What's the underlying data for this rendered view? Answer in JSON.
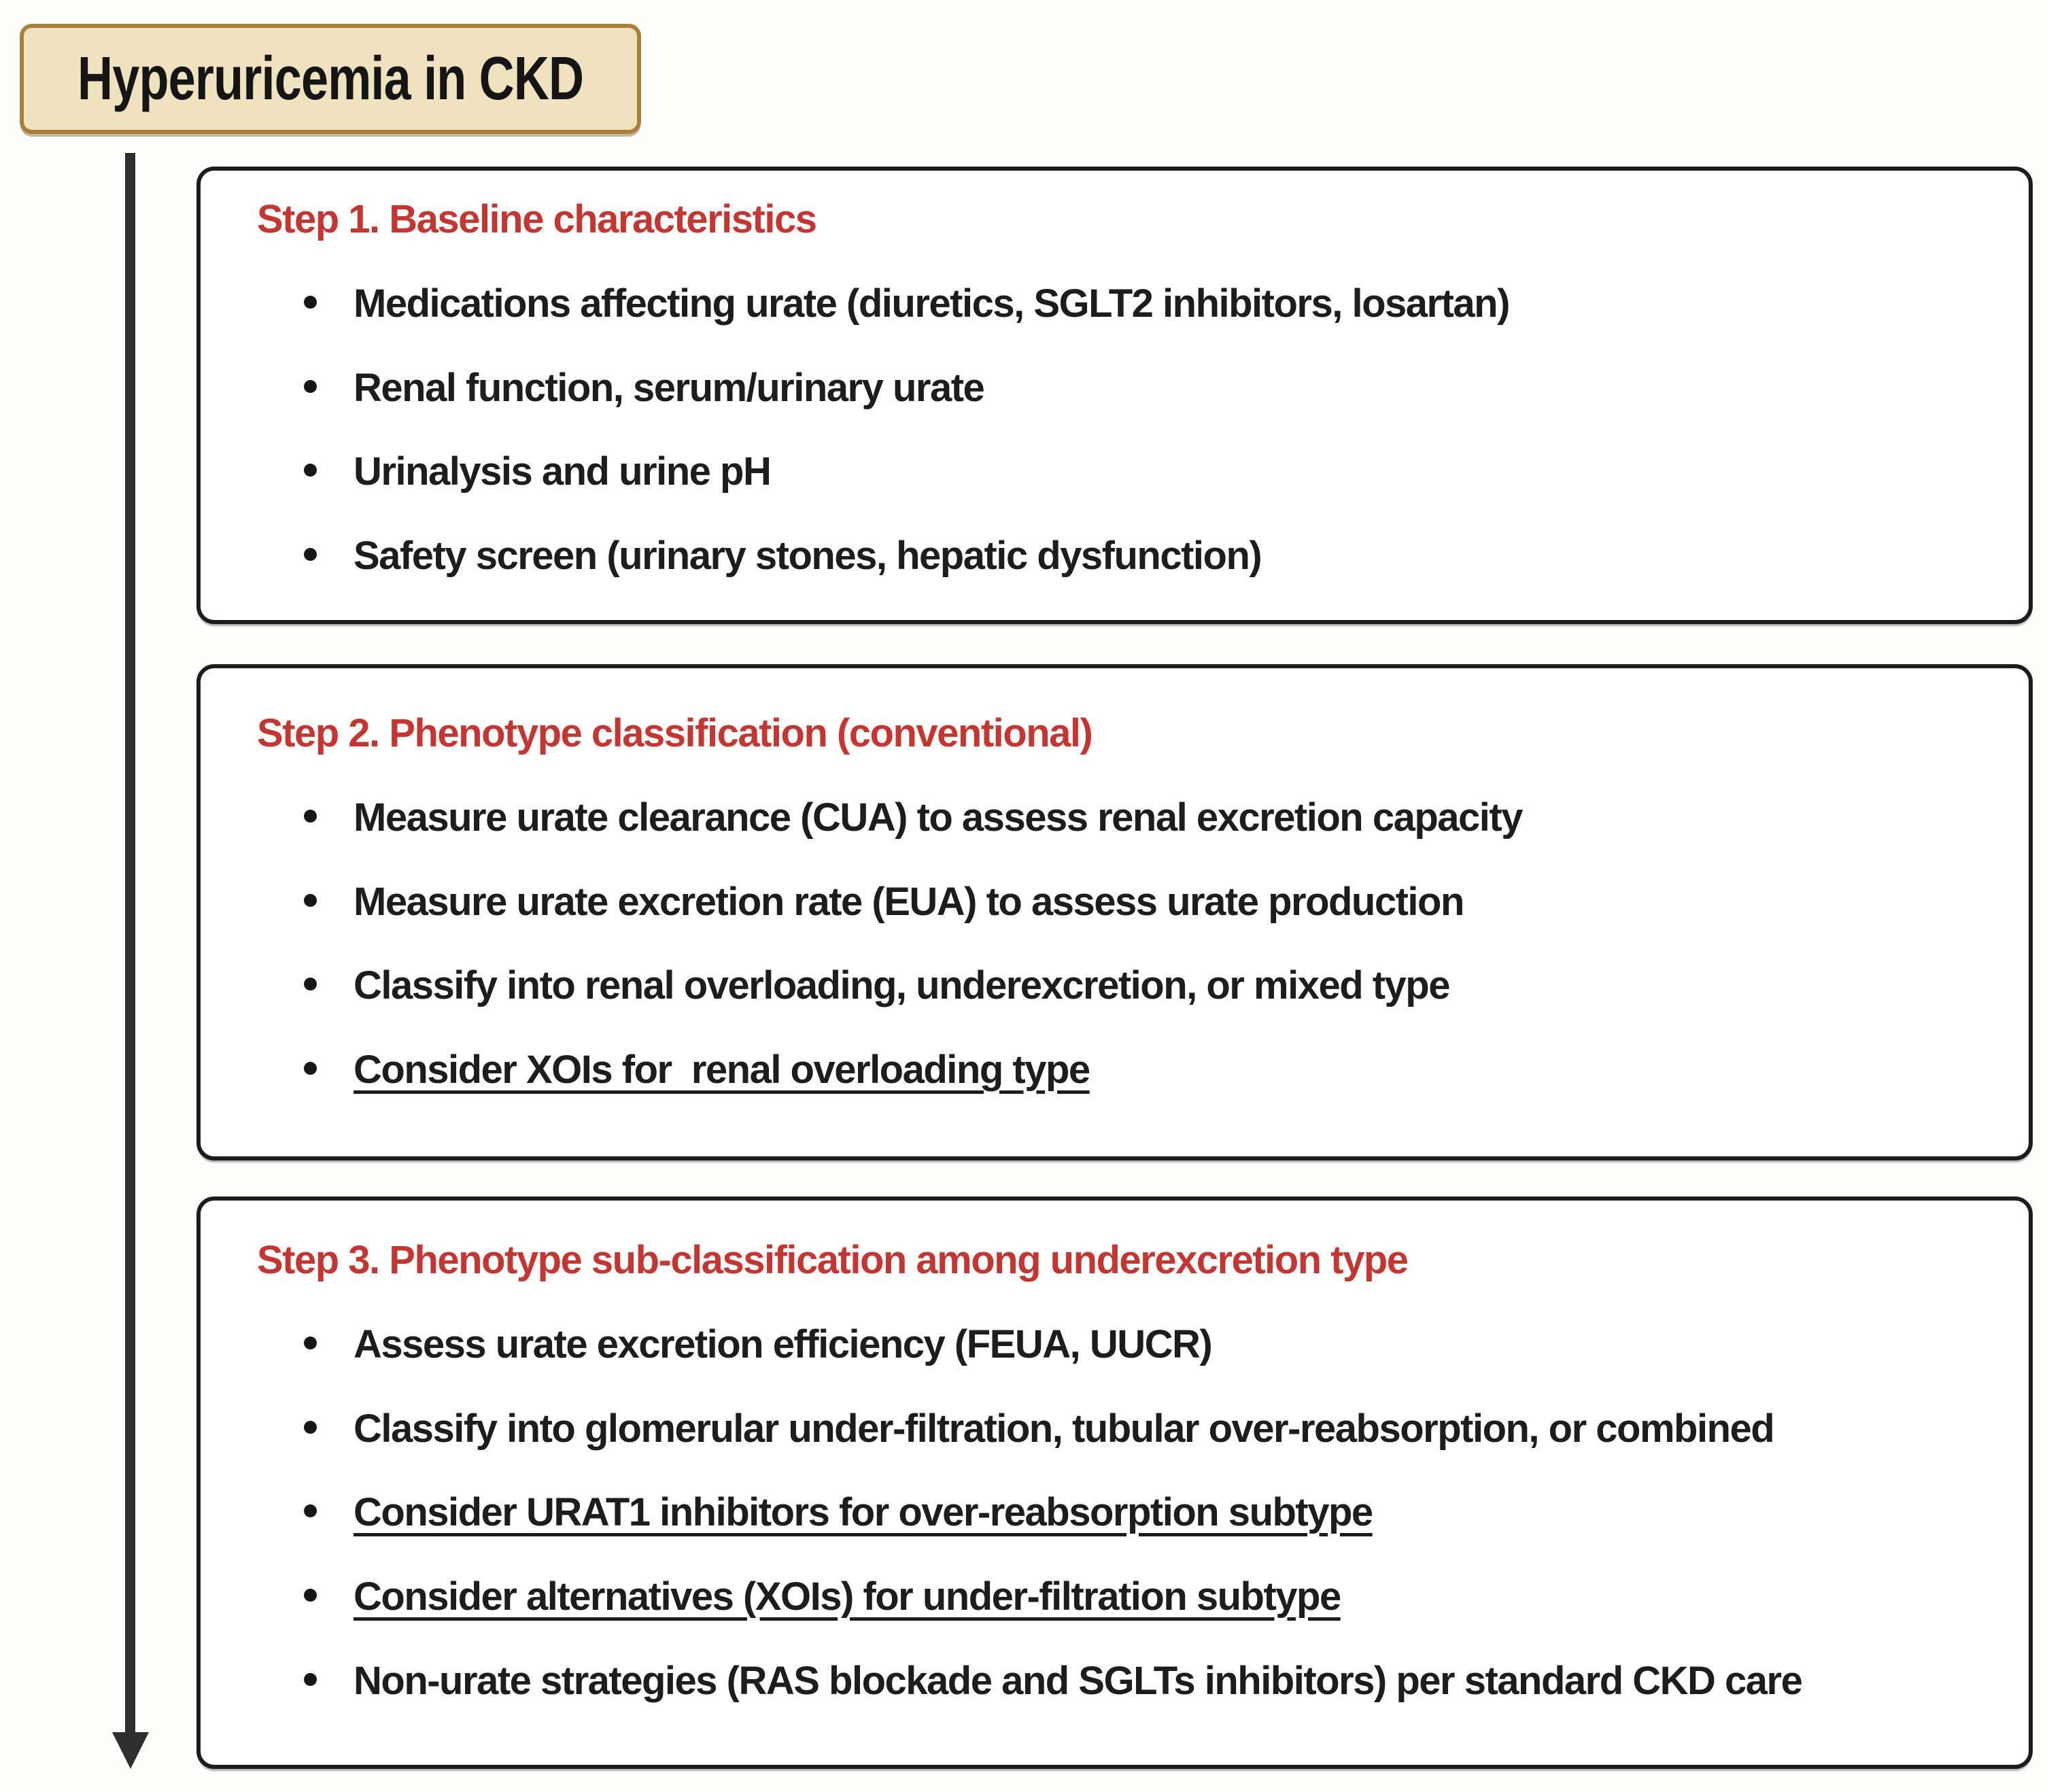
{
  "title": "Hyperuricemia in CKD",
  "arrow": {
    "icon": "down-arrow",
    "direction": "down"
  },
  "colors": {
    "title_box_background": "#f0e2bf",
    "title_box_border": "#a8803a",
    "step_heading_red": "#c43632",
    "body_text": "#1d1d1d",
    "step_box_border": "#1c1c1c",
    "arrow": "#2e2e2e",
    "page_background": "#fdfdfc"
  },
  "steps": [
    {
      "heading": "Step 1. Baseline characteristics",
      "bullets": [
        {
          "text": "Medications affecting urate (diuretics, SGLT2 inhibitors, losartan)",
          "underline": false
        },
        {
          "text": "Renal function, serum/urinary urate",
          "underline": false
        },
        {
          "text": "Urinalysis and urine pH",
          "underline": false
        },
        {
          "text": "Safety screen (urinary stones, hepatic dysfunction)",
          "underline": false
        }
      ]
    },
    {
      "heading": "Step 2. Phenotype classification (conventional)",
      "bullets": [
        {
          "text": "Measure urate clearance (CUA) to assess renal excretion capacity",
          "underline": false
        },
        {
          "text": "Measure urate excretion rate (EUA) to assess urate production",
          "underline": false
        },
        {
          "text": "Classify into renal overloading, underexcretion, or mixed type",
          "underline": false
        },
        {
          "text": "Consider XOIs for  renal overloading type",
          "underline": true
        }
      ]
    },
    {
      "heading": "Step 3. Phenotype sub-classification among underexcretion type",
      "bullets": [
        {
          "text": "Assess urate excretion efficiency (FEUA, UUCR)",
          "underline": false
        },
        {
          "text": "Classify into glomerular under-filtration, tubular over-reabsorption, or combined",
          "underline": false
        },
        {
          "text": "Consider URAT1 inhibitors for over-reabsorption subtype",
          "underline": true
        },
        {
          "text": "Consider alternatives (XOIs) for under-filtration subtype",
          "underline": true
        },
        {
          "text": "Non-urate strategies (RAS blockade and SGLTs inhibitors) per standard CKD care",
          "underline": false
        }
      ]
    }
  ]
}
